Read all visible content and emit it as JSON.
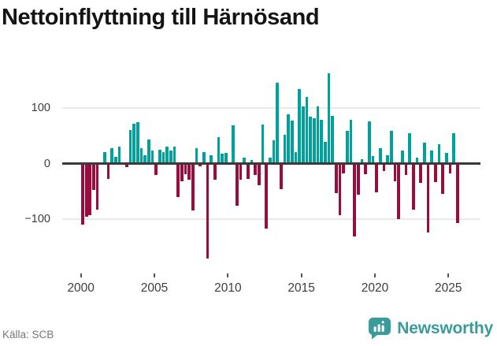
{
  "header": {
    "title": "Nettoinflyttning till Härnösand"
  },
  "footer": {
    "source": "Källa: SCB",
    "brand": "Newsworthy",
    "brand_color": "#3a9b9b",
    "brand_icon": "bar-chart-speech-bubble"
  },
  "chart_data": {
    "type": "bar",
    "title": "Nettoinflyttning till Härnösand",
    "frequency": "quarterly",
    "start_period": "2000 Q1",
    "end_period": "2025 Q3",
    "values": [
      -109,
      -95,
      -92,
      -48,
      -82,
      0,
      20,
      -27,
      28,
      12,
      30,
      0,
      -7,
      60,
      71,
      74,
      27,
      15,
      43,
      24,
      -20,
      25,
      20,
      31,
      24,
      30,
      -60,
      -32,
      -19,
      -29,
      -84,
      27,
      -5,
      20,
      -170,
      15,
      -29,
      47,
      18,
      19,
      0,
      68,
      -76,
      -29,
      11,
      -27,
      7,
      -21,
      -39,
      70,
      -117,
      11,
      41,
      145,
      -46,
      51,
      88,
      77,
      20,
      134,
      102,
      120,
      84,
      81,
      102,
      79,
      39,
      162,
      85,
      -53,
      -92,
      -18,
      59,
      78,
      -130,
      -56,
      8,
      -19,
      75,
      14,
      -51,
      27,
      -13,
      15,
      58,
      -32,
      -99,
      23,
      -20,
      55,
      -82,
      10,
      -35,
      38,
      -123,
      24,
      -33,
      35,
      -55,
      19,
      -18,
      54,
      -107
    ],
    "x_tick_labels": [
      "2000",
      "2005",
      "2010",
      "2015",
      "2020",
      "2025"
    ],
    "y_ticks": [
      {
        "value": 100,
        "label": "100"
      },
      {
        "value": 0,
        "label": "0"
      },
      {
        "value": -100,
        "label": "−100"
      }
    ],
    "gridline_values": [
      100,
      -100
    ],
    "positive_color": "#00a19a",
    "negative_color": "#9a0c3d",
    "ylim": [
      -195,
      185
    ],
    "grid": "horizontal-only",
    "legend": "none"
  }
}
